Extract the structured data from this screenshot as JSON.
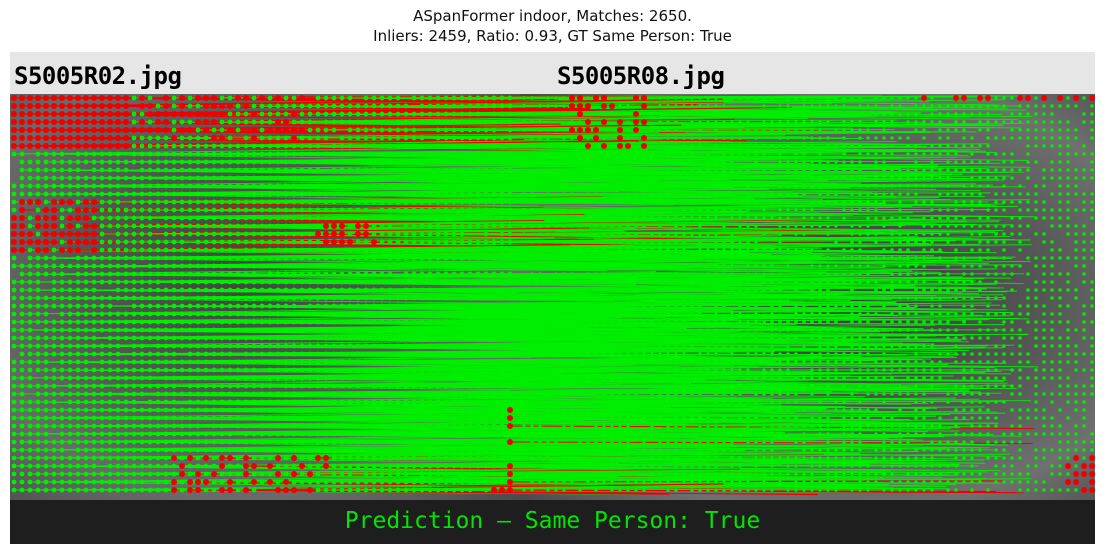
{
  "title": {
    "line1": "ASpanFormer indoor, Matches: 2650.",
    "line2": "Inliers: 2459, Ratio: 0.93, GT Same Person: True"
  },
  "images": {
    "left_filename": "S5005R02.jpg",
    "right_filename": "S5005R08.jpg"
  },
  "prediction": {
    "text": "Prediction — Same Person: True",
    "color": "#00e600"
  },
  "colors": {
    "inlier": "#00ee00",
    "outlier": "#ee0000",
    "header_bg": "#e6e6e6",
    "footer_bg": "#1e1e1e"
  },
  "stats": {
    "matches": 2650,
    "inliers": 2459,
    "ratio": 0.93,
    "gt_same_person": true
  }
}
